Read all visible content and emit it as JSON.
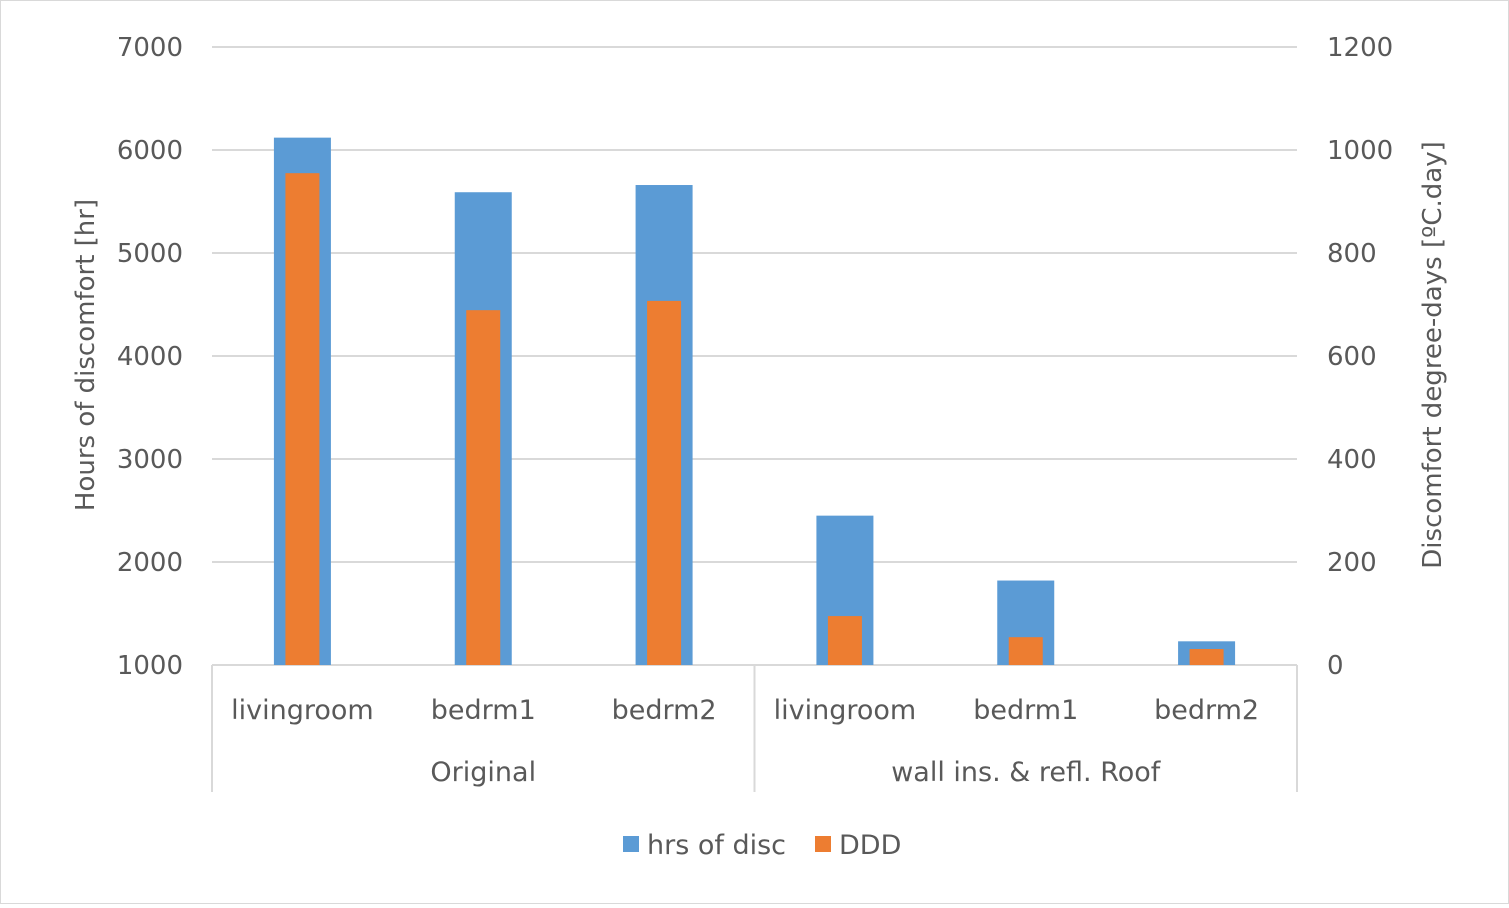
{
  "chart_data": {
    "type": "bar",
    "groups": [
      {
        "label": "Original",
        "categories": [
          "livingroom",
          "bedrm1",
          "bedrm2"
        ]
      },
      {
        "label": "wall ins. & refl. Roof",
        "categories": [
          "livingroom",
          "bedrm1",
          "bedrm2"
        ]
      }
    ],
    "categories": [
      "livingroom",
      "bedrm1",
      "bedrm2",
      "livingroom",
      "bedrm1",
      "bedrm2"
    ],
    "series": [
      {
        "name": "hrs of disc",
        "axis": "left",
        "color": "#5b9bd5",
        "values": [
          6120,
          5590,
          5660,
          2450,
          1820,
          1230
        ]
      },
      {
        "name": "DDD",
        "axis": "right",
        "color": "#ed7d31",
        "values": [
          955,
          689,
          707,
          95,
          54,
          31
        ]
      }
    ],
    "y_left": {
      "label": "Hours of discomfort [hr]",
      "ylim": [
        1000,
        7000
      ],
      "ticks": [
        "1000",
        "2000",
        "3000",
        "4000",
        "5000",
        "6000",
        "7000"
      ]
    },
    "y_right": {
      "label": "Discomfort degree-days [ºC.day]",
      "ylim": [
        0,
        1200
      ],
      "ticks": [
        "0",
        "200",
        "400",
        "600",
        "800",
        "1000",
        "1200"
      ]
    },
    "grid": true,
    "legend_position": "bottom"
  }
}
